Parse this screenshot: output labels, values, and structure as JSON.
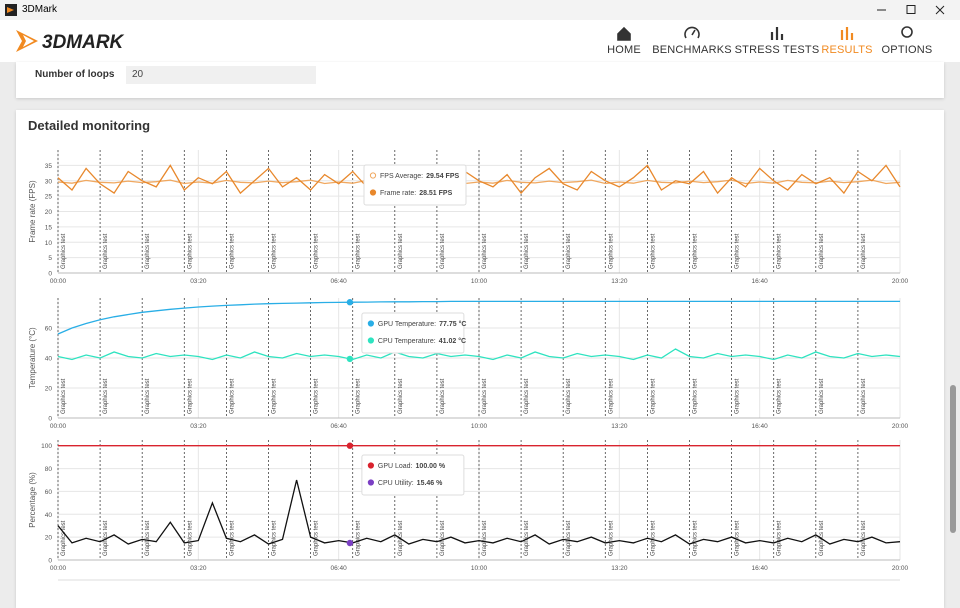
{
  "window": {
    "title": "3DMark"
  },
  "header": {
    "logo": "3DMARK",
    "nav": [
      "HOME",
      "BENCHMARKS",
      "STRESS TESTS",
      "RESULTS",
      "OPTIONS"
    ],
    "active": "RESULTS"
  },
  "settings": {
    "label": "Number of loops",
    "value": "20"
  },
  "monitoring": {
    "title": "Detailed monitoring"
  },
  "chart_data": [
    {
      "type": "line",
      "ylabel": "Frame rate (FPS)",
      "x": [
        0,
        20,
        40,
        60,
        80,
        100,
        120,
        140,
        160,
        180,
        200,
        220,
        240,
        260,
        280,
        300,
        320,
        340,
        360,
        380,
        400,
        420,
        440,
        460,
        480,
        500,
        520,
        540,
        560,
        580,
        600,
        620,
        640,
        660,
        680,
        700,
        720,
        740,
        760,
        780,
        800,
        820,
        840,
        860,
        880,
        900,
        920,
        940,
        960,
        980,
        1000,
        1020,
        1040,
        1060,
        1080,
        1100,
        1120,
        1140,
        1160,
        1180,
        1200
      ],
      "xlim": [
        0,
        1200
      ],
      "xticks": [
        {
          "value": 0,
          "label": "00:00"
        },
        {
          "value": 200,
          "label": "03:20"
        },
        {
          "value": 400,
          "label": "06:40"
        },
        {
          "value": 600,
          "label": "10:00"
        },
        {
          "value": 800,
          "label": "13:20"
        },
        {
          "value": 1000,
          "label": "16:40"
        },
        {
          "value": 1200,
          "label": "20:00"
        }
      ],
      "ylim": [
        0,
        40
      ],
      "yticks": [
        0,
        5,
        10,
        15,
        20,
        25,
        30,
        35
      ],
      "grid": true,
      "markers": {
        "label": "Graphics test",
        "x": [
          0,
          60,
          120,
          180,
          240,
          300,
          360,
          420,
          480,
          540,
          600,
          660,
          720,
          780,
          840,
          900,
          960,
          1020,
          1080,
          1140
        ]
      },
      "series": [
        {
          "name": "FPS Average",
          "color": "#f0a860",
          "values": [
            29.6,
            29.2,
            30.1,
            29.5,
            29.3,
            29.9,
            29.4,
            29.7,
            30.2,
            29.1,
            29.6,
            29.2,
            30.1,
            29.5,
            29.3,
            29.9,
            29.4,
            29.7,
            30.2,
            29.1,
            29.6,
            29.2,
            30.1,
            29.5,
            29.3,
            29.9,
            29.4,
            29.7,
            30.2,
            29.1,
            29.6,
            29.2,
            30.1,
            29.5,
            29.3,
            29.9,
            29.4,
            29.7,
            30.2,
            29.1,
            29.6,
            29.2,
            30.1,
            29.5,
            29.3,
            29.9,
            29.4,
            29.7,
            30.2,
            29.1,
            29.6,
            29.2,
            30.1,
            29.5,
            29.3,
            29.9,
            29.4,
            29.7,
            30.2,
            29.1,
            29.5
          ]
        },
        {
          "name": "Frame rate",
          "color": "#e8882c",
          "values": [
            31,
            27,
            34,
            29,
            26,
            33,
            30,
            28,
            35,
            27,
            31,
            29,
            33,
            26,
            30,
            34,
            28,
            31,
            27,
            32,
            29,
            33,
            28,
            30,
            26,
            34,
            29,
            31,
            27,
            33,
            30,
            28,
            32,
            26,
            31,
            34,
            29,
            27,
            33,
            30,
            28,
            31,
            35,
            27,
            30,
            29,
            33,
            26,
            31,
            28,
            34,
            30,
            27,
            32,
            29,
            31,
            26,
            33,
            30,
            35,
            28
          ]
        }
      ],
      "tooltip": [
        {
          "label": "FPS Average:",
          "value_label": "29.54 FPS"
        },
        {
          "label": "Frame rate:",
          "value_label": "28.51 FPS"
        }
      ]
    },
    {
      "type": "line",
      "ylabel": "Temperature (°C)",
      "x": [
        0,
        20,
        40,
        60,
        80,
        100,
        120,
        140,
        160,
        180,
        200,
        220,
        240,
        260,
        280,
        300,
        320,
        340,
        360,
        380,
        400,
        420,
        440,
        460,
        480,
        500,
        520,
        540,
        560,
        580,
        600,
        620,
        640,
        660,
        680,
        700,
        720,
        740,
        760,
        780,
        800,
        820,
        840,
        860,
        880,
        900,
        920,
        940,
        960,
        980,
        1000,
        1020,
        1040,
        1060,
        1080,
        1100,
        1120,
        1140,
        1160,
        1180,
        1200
      ],
      "xlim": [
        0,
        1200
      ],
      "xticks": [
        {
          "value": 0,
          "label": "00:00"
        },
        {
          "value": 200,
          "label": "03:20"
        },
        {
          "value": 400,
          "label": "06:40"
        },
        {
          "value": 600,
          "label": "10:00"
        },
        {
          "value": 800,
          "label": "13:20"
        },
        {
          "value": 1000,
          "label": "16:40"
        },
        {
          "value": 1200,
          "label": "20:00"
        }
      ],
      "ylim": [
        0,
        80
      ],
      "yticks": [
        0,
        20,
        40,
        60
      ],
      "grid": true,
      "markers": {
        "label": "Graphics test",
        "x": [
          0,
          60,
          120,
          180,
          240,
          300,
          360,
          420,
          480,
          540,
          600,
          660,
          720,
          780,
          840,
          900,
          960,
          1020,
          1080,
          1140
        ]
      },
      "cursor_x": 416,
      "series": [
        {
          "name": "GPU Temperature",
          "color": "#29aee6",
          "values": [
            56,
            60,
            63,
            65.5,
            67.5,
            69,
            70.5,
            71.5,
            72.5,
            73.3,
            74,
            74.6,
            75.1,
            75.5,
            75.9,
            76.2,
            76.4,
            76.6,
            76.8,
            77,
            77.1,
            77.2,
            77.3,
            77.4,
            77.5,
            77.5,
            77.6,
            77.6,
            77.7,
            77.7,
            77.75,
            77.75,
            77.75,
            77.75,
            77.75,
            77.75,
            77.75,
            77.75,
            77.75,
            77.75,
            77.75,
            77.75,
            77.75,
            77.75,
            77.75,
            77.75,
            77.75,
            77.75,
            77.75,
            77.75,
            77.75,
            77.75,
            77.75,
            77.75,
            77.75,
            77.75,
            77.75,
            77.75,
            77.75,
            77.75,
            77.75
          ]
        },
        {
          "name": "CPU Temperature",
          "color": "#2ee3c0",
          "values": [
            41,
            39,
            42,
            40,
            44,
            41,
            40,
            43,
            41,
            42,
            41,
            39,
            42,
            40,
            44,
            41,
            40,
            43,
            41,
            42,
            41,
            39,
            42,
            40,
            44,
            41,
            40,
            43,
            41,
            42,
            41,
            39,
            42,
            40,
            44,
            41,
            40,
            43,
            41,
            42,
            41,
            39,
            42,
            40,
            46,
            41,
            40,
            43,
            41,
            42,
            41,
            39,
            42,
            40,
            44,
            41,
            40,
            43,
            41,
            42,
            41
          ]
        }
      ],
      "tooltip": [
        {
          "label": "GPU Temperature:",
          "value_label": "77.75 °C"
        },
        {
          "label": "CPU Temperature:",
          "value_label": "41.02 °C"
        }
      ]
    },
    {
      "type": "line",
      "ylabel": "Percentage (%)",
      "x": [
        0,
        20,
        40,
        60,
        80,
        100,
        120,
        140,
        160,
        180,
        200,
        220,
        240,
        260,
        280,
        300,
        320,
        340,
        360,
        380,
        400,
        420,
        440,
        460,
        480,
        500,
        520,
        540,
        560,
        580,
        600,
        620,
        640,
        660,
        680,
        700,
        720,
        740,
        760,
        780,
        800,
        820,
        840,
        860,
        880,
        900,
        920,
        940,
        960,
        980,
        1000,
        1020,
        1040,
        1060,
        1080,
        1100,
        1120,
        1140,
        1160,
        1180,
        1200
      ],
      "xlim": [
        0,
        1200
      ],
      "xticks": [
        {
          "value": 0,
          "label": "00:00"
        },
        {
          "value": 200,
          "label": "03:20"
        },
        {
          "value": 400,
          "label": "06:40"
        },
        {
          "value": 600,
          "label": "10:00"
        },
        {
          "value": 800,
          "label": "13:20"
        },
        {
          "value": 1000,
          "label": "16:40"
        },
        {
          "value": 1200,
          "label": "20:00"
        }
      ],
      "ylim": [
        0,
        105
      ],
      "yticks": [
        0,
        20,
        40,
        60,
        80,
        100
      ],
      "grid": true,
      "markers": {
        "label": "Graphics test",
        "x": [
          0,
          60,
          120,
          180,
          240,
          300,
          360,
          420,
          480,
          540,
          600,
          660,
          720,
          780,
          840,
          900,
          960,
          1020,
          1080,
          1140
        ]
      },
      "cursor_x": 416,
      "series": [
        {
          "name": "GPU Load",
          "color": "#d9232e",
          "values": [
            100,
            100,
            100,
            100,
            100,
            100,
            100,
            100,
            100,
            100,
            100,
            100,
            100,
            100,
            100,
            100,
            100,
            100,
            100,
            100,
            100,
            100,
            100,
            100,
            100,
            100,
            100,
            100,
            100,
            100,
            100,
            100,
            100,
            100,
            100,
            100,
            100,
            100,
            100,
            100,
            100,
            100,
            100,
            100,
            100,
            100,
            100,
            100,
            100,
            100,
            100,
            100,
            100,
            100,
            100,
            100,
            100,
            100,
            100,
            100,
            100
          ]
        },
        {
          "name": "CPU Utility",
          "color": "#111111",
          "values": [
            30,
            15,
            19,
            16,
            22,
            14,
            18,
            16,
            33,
            15,
            17,
            50,
            19,
            16,
            22,
            14,
            18,
            70,
            20,
            15,
            17,
            15,
            19,
            16,
            22,
            14,
            18,
            16,
            20,
            15,
            17,
            15,
            19,
            16,
            22,
            14,
            18,
            16,
            20,
            15,
            17,
            15,
            19,
            16,
            22,
            14,
            18,
            16,
            20,
            15,
            17,
            15,
            19,
            16,
            22,
            14,
            18,
            16,
            20,
            15,
            16
          ]
        }
      ],
      "tooltip": [
        {
          "label": "GPU Load:",
          "value_label": "100.00 %"
        },
        {
          "label": "CPU Utility:",
          "value_label": "15.46 %",
          "color": "#7b3fc4"
        }
      ]
    }
  ]
}
